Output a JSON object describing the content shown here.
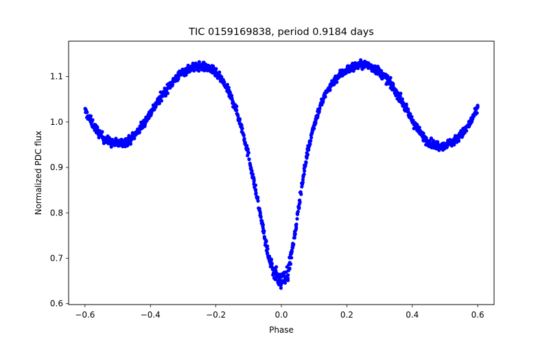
{
  "chart_data": {
    "type": "scatter",
    "title": "TIC 0159169838, period 0.9184 days",
    "xlabel": "Phase",
    "ylabel": "Normalized PDC flux",
    "xlim": [
      -0.65,
      0.65
    ],
    "ylim": [
      0.598,
      1.178
    ],
    "xticks": [
      -0.6,
      -0.4,
      -0.2,
      0.0,
      0.2,
      0.4,
      0.6
    ],
    "xtick_labels": [
      "−0.6",
      "−0.4",
      "−0.2",
      "0.0",
      "0.2",
      "0.4",
      "0.6"
    ],
    "yticks": [
      0.6,
      0.7,
      0.8,
      0.9,
      1.0,
      1.1
    ],
    "ytick_labels": [
      "0.6",
      "0.7",
      "0.8",
      "0.9",
      "1.0",
      "1.1"
    ],
    "grid": false,
    "marker_color": "#0000ff",
    "curve": [
      {
        "phase": -0.6,
        "flux": 1.025
      },
      {
        "phase": -0.58,
        "flux": 1.0
      },
      {
        "phase": -0.56,
        "flux": 0.978
      },
      {
        "phase": -0.54,
        "flux": 0.962
      },
      {
        "phase": -0.52,
        "flux": 0.955
      },
      {
        "phase": -0.5,
        "flux": 0.952
      },
      {
        "phase": -0.48,
        "flux": 0.955
      },
      {
        "phase": -0.46,
        "flux": 0.962
      },
      {
        "phase": -0.44,
        "flux": 0.978
      },
      {
        "phase": -0.42,
        "flux": 0.998
      },
      {
        "phase": -0.4,
        "flux": 1.02
      },
      {
        "phase": -0.38,
        "flux": 1.042
      },
      {
        "phase": -0.36,
        "flux": 1.063
      },
      {
        "phase": -0.34,
        "flux": 1.082
      },
      {
        "phase": -0.32,
        "flux": 1.098
      },
      {
        "phase": -0.3,
        "flux": 1.11
      },
      {
        "phase": -0.28,
        "flux": 1.118
      },
      {
        "phase": -0.26,
        "flux": 1.122
      },
      {
        "phase": -0.24,
        "flux": 1.122
      },
      {
        "phase": -0.22,
        "flux": 1.118
      },
      {
        "phase": -0.2,
        "flux": 1.108
      },
      {
        "phase": -0.18,
        "flux": 1.09
      },
      {
        "phase": -0.16,
        "flux": 1.065
      },
      {
        "phase": -0.14,
        "flux": 1.03
      },
      {
        "phase": -0.12,
        "flux": 0.985
      },
      {
        "phase": -0.1,
        "flux": 0.925
      },
      {
        "phase": -0.08,
        "flux": 0.855
      },
      {
        "phase": -0.06,
        "flux": 0.78
      },
      {
        "phase": -0.04,
        "flux": 0.705
      },
      {
        "phase": -0.02,
        "flux": 0.665
      },
      {
        "phase": 0.0,
        "flux": 0.65
      },
      {
        "phase": 0.02,
        "flux": 0.668
      },
      {
        "phase": 0.04,
        "flux": 0.745
      },
      {
        "phase": 0.06,
        "flux": 0.85
      },
      {
        "phase": 0.08,
        "flux": 0.935
      },
      {
        "phase": 0.1,
        "flux": 0.995
      },
      {
        "phase": 0.12,
        "flux": 1.038
      },
      {
        "phase": 0.14,
        "flux": 1.068
      },
      {
        "phase": 0.16,
        "flux": 1.09
      },
      {
        "phase": 0.18,
        "flux": 1.105
      },
      {
        "phase": 0.2,
        "flux": 1.115
      },
      {
        "phase": 0.22,
        "flux": 1.122
      },
      {
        "phase": 0.24,
        "flux": 1.126
      },
      {
        "phase": 0.26,
        "flux": 1.125
      },
      {
        "phase": 0.28,
        "flux": 1.12
      },
      {
        "phase": 0.3,
        "flux": 1.11
      },
      {
        "phase": 0.32,
        "flux": 1.096
      },
      {
        "phase": 0.34,
        "flux": 1.078
      },
      {
        "phase": 0.36,
        "flux": 1.056
      },
      {
        "phase": 0.38,
        "flux": 1.03
      },
      {
        "phase": 0.4,
        "flux": 1.003
      },
      {
        "phase": 0.42,
        "flux": 0.98
      },
      {
        "phase": 0.44,
        "flux": 0.962
      },
      {
        "phase": 0.46,
        "flux": 0.952
      },
      {
        "phase": 0.48,
        "flux": 0.948
      },
      {
        "phase": 0.5,
        "flux": 0.95
      },
      {
        "phase": 0.52,
        "flux": 0.955
      },
      {
        "phase": 0.54,
        "flux": 0.965
      },
      {
        "phase": 0.56,
        "flux": 0.98
      },
      {
        "phase": 0.58,
        "flux": 1.002
      },
      {
        "phase": 0.6,
        "flux": 1.03
      }
    ]
  }
}
